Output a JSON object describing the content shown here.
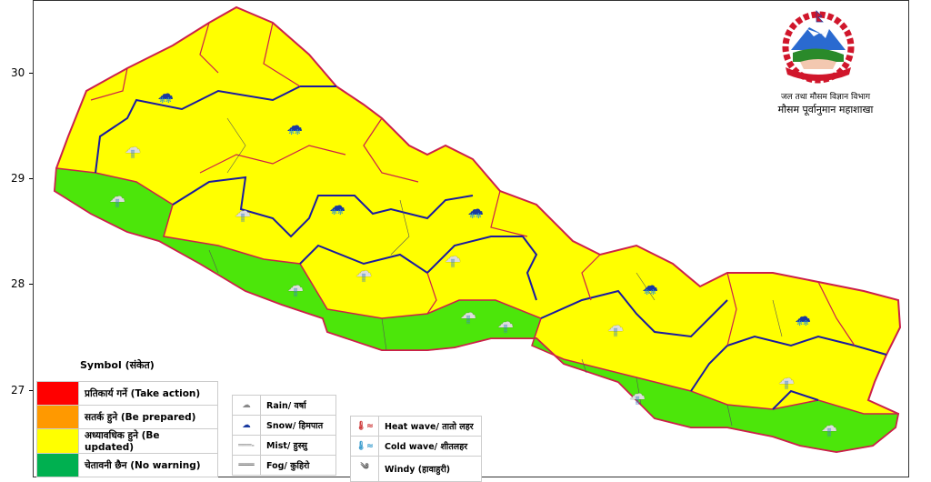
{
  "axis": {
    "lat_ticks": [
      "30",
      "29",
      "28",
      "27"
    ]
  },
  "header": {
    "org_line1": "जल तथा मौसम विज्ञान विभाग",
    "org_line2": "मौसम पूर्वानुमान महाशाखा"
  },
  "colors": {
    "take_action": "#ff0000",
    "be_prepared": "#ff9900",
    "be_updated": "#ffff00",
    "no_warning": "#00b050",
    "map_green": "#4ce60a",
    "province_border": "#1a1aa0",
    "district_border": "#cc1f4a"
  },
  "legend": {
    "title": "Symbol (संकेत)",
    "levels": [
      {
        "label": "प्रतिकार्य गर्ने (Take action)",
        "color": "#ff0000"
      },
      {
        "label": "सतर्क हुने (Be prepared)",
        "color": "#ff9900"
      },
      {
        "label": "अध्यावधिक हुने (Be updated)",
        "color": "#ffff00"
      },
      {
        "label": "चेतावनी छैन (No warning)",
        "color": "#00b050"
      }
    ],
    "symbols1": [
      {
        "icon": "rain-icon",
        "label": "Rain/ वर्षा"
      },
      {
        "icon": "snow-icon",
        "label": "Snow/ हिमपात"
      },
      {
        "icon": "mist-icon",
        "label": "Mist/ हुस्सु"
      },
      {
        "icon": "fog-icon",
        "label": "Fog/ कुहिरो"
      }
    ],
    "symbols2": [
      {
        "icon": "heat-wave-icon",
        "label": "Heat wave/ तातो लहर"
      },
      {
        "icon": "cold-wave-icon",
        "label": "Cold wave/ शीतलहर"
      },
      {
        "icon": "windy-icon",
        "label": "Windy (हावाहुरी)"
      }
    ]
  },
  "weather_icons": [
    "snow",
    "snow",
    "snow",
    "snow",
    "snow",
    "snow",
    "rain",
    "rain",
    "rain",
    "rain",
    "rain",
    "rain",
    "rain",
    "rain",
    "rain",
    "rain",
    "rain",
    "rain"
  ]
}
